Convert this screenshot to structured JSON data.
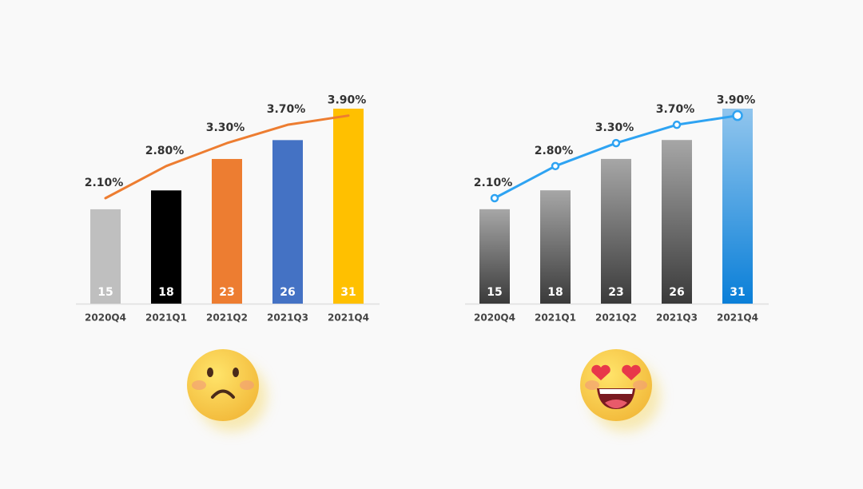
{
  "chart_data": [
    {
      "type": "bar-line",
      "categories": [
        "2020Q4",
        "2021Q1",
        "2021Q2",
        "2021Q3",
        "2021Q4"
      ],
      "series": [
        {
          "type": "bar",
          "values": [
            15,
            18,
            23,
            26,
            31
          ],
          "colors": [
            "#bfbfbf",
            "#000000",
            "#ed7d31",
            "#4472c4",
            "#ffc000"
          ],
          "gradient": false
        },
        {
          "type": "line",
          "axis": "y2",
          "color": "#ed7d31",
          "markers": false,
          "values": [
            2.1,
            2.8,
            3.3,
            3.7,
            3.9
          ],
          "value_labels": [
            "2.10%",
            "2.80%",
            "3.30%",
            "3.70%",
            "3.90%"
          ]
        }
      ],
      "ylim": [
        0,
        35
      ],
      "y2lim": [
        -0.2,
        4.6
      ]
    },
    {
      "type": "bar-line",
      "categories": [
        "2020Q4",
        "2021Q1",
        "2021Q2",
        "2021Q3",
        "2021Q4"
      ],
      "series": [
        {
          "type": "bar",
          "values": [
            15,
            18,
            23,
            26,
            31
          ],
          "colors": [
            "#3a3a3a",
            "#3a3a3a",
            "#3a3a3a",
            "#3a3a3a",
            "#0a7fd8"
          ],
          "gradient": true
        },
        {
          "type": "line",
          "axis": "y2",
          "color": "#2ea3f2",
          "markers": true,
          "values": [
            2.1,
            2.8,
            3.3,
            3.7,
            3.9
          ],
          "value_labels": [
            "2.10%",
            "2.80%",
            "3.30%",
            "3.70%",
            "3.90%"
          ]
        }
      ],
      "ylim": [
        0,
        35
      ],
      "y2lim": [
        -0.2,
        4.6
      ]
    }
  ]
}
